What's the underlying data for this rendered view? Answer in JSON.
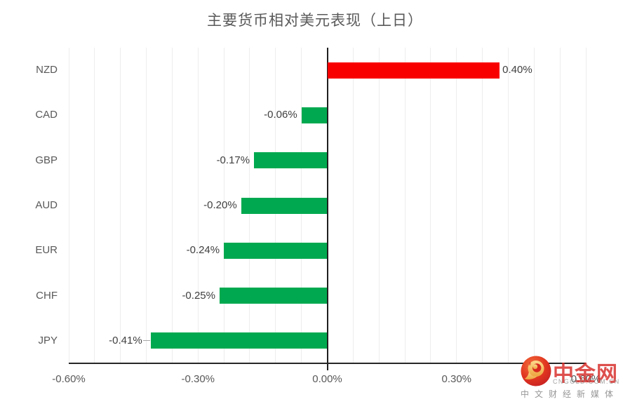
{
  "chart_data": {
    "type": "bar",
    "orientation": "horizontal",
    "title": "主要货币相对美元表现（上日）",
    "categories": [
      "NZD",
      "CAD",
      "GBP",
      "AUD",
      "EUR",
      "CHF",
      "JPY"
    ],
    "values": [
      0.4,
      -0.06,
      -0.17,
      -0.2,
      -0.24,
      -0.25,
      -0.41
    ],
    "bars": [
      {
        "category": "NZD",
        "value": 0.4,
        "label": "0.40%",
        "leader": false
      },
      {
        "category": "CAD",
        "value": -0.06,
        "label": "-0.06%",
        "leader": false
      },
      {
        "category": "GBP",
        "value": -0.17,
        "label": "-0.17%",
        "leader": false
      },
      {
        "category": "AUD",
        "value": -0.2,
        "label": "-0.20%",
        "leader": false
      },
      {
        "category": "EUR",
        "value": -0.24,
        "label": "-0.24%",
        "leader": false
      },
      {
        "category": "CHF",
        "value": -0.25,
        "label": "-0.25%",
        "leader": false
      },
      {
        "category": "JPY",
        "value": -0.41,
        "label": "-0.41%",
        "leader": true
      }
    ],
    "xlim": [
      -0.6,
      0.6
    ],
    "x_ticks": [
      "-0.60%",
      "-0.30%",
      "0.00%",
      "0.30%",
      "0.60%"
    ],
    "x_tick_values": [
      -0.6,
      -0.3,
      0.0,
      0.3,
      0.6
    ],
    "minor_grid_step": 0.06,
    "grid": true,
    "legend": "none",
    "positive_color": "#f90000",
    "negative_color": "#00a94f"
  },
  "watermark": {
    "brand": "中金网",
    "domain": "CNGOLD.COM.CN",
    "tagline": "中文财经新媒体",
    "brand_color": "#d62a26",
    "badge_outer_color": "#c01d24",
    "badge_inner_color": "#f4703a",
    "swirl_color": "#f3b64a"
  }
}
